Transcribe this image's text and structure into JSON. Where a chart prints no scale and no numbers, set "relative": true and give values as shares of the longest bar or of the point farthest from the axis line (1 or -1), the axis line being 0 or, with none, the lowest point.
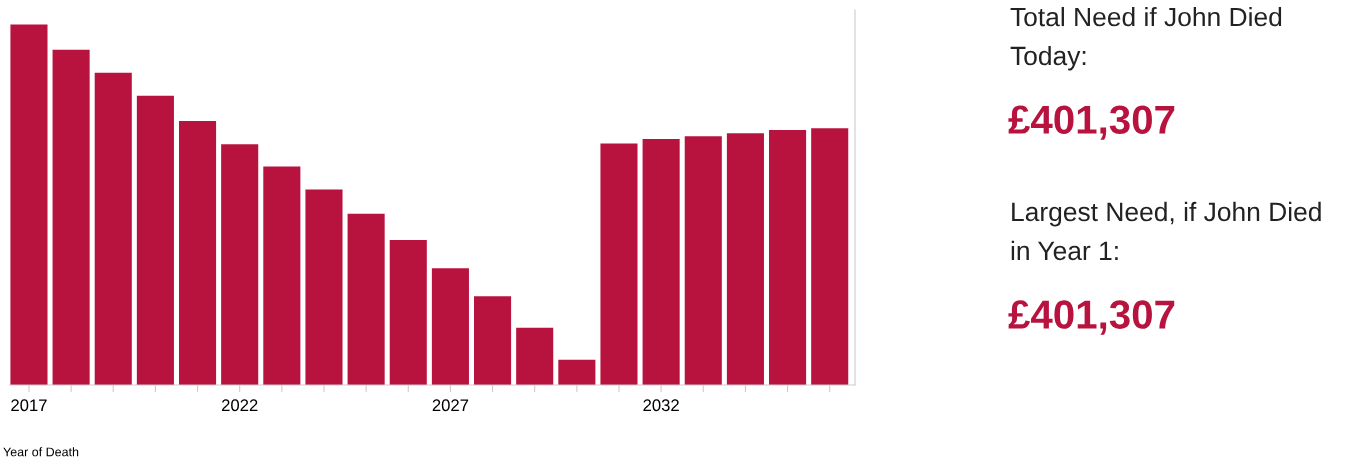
{
  "chart_data": [
    {
      "type": "bar",
      "xlabel": "Year of Death",
      "relative": true,
      "color": "#b8133f",
      "x": [
        2017,
        2018,
        2019,
        2020,
        2021,
        2022,
        2023,
        2024,
        2025,
        2026,
        2027,
        2028,
        2029,
        2030,
        2031,
        2032,
        2033,
        2034,
        2035,
        2036
      ],
      "values": [
        1,
        0.93,
        0.866,
        0.802,
        0.732,
        0.668,
        0.606,
        0.542,
        0.475,
        0.402,
        0.324,
        0.246,
        0.159,
        0.07,
        0.67,
        0.682,
        0.69,
        0.698,
        0.707,
        0.712
      ],
      "xlim": [
        2016.55,
        2036.6
      ],
      "xticks": [
        2017,
        {
          "value": 2018,
          "label": null
        },
        {
          "value": 2019,
          "label": null
        },
        {
          "value": 2020,
          "label": null
        },
        {
          "value": 2021,
          "label": null
        },
        2022,
        {
          "value": 2023,
          "label": null
        },
        {
          "value": 2024,
          "label": null
        },
        {
          "value": 2025,
          "label": null
        },
        {
          "value": 2026,
          "label": null
        },
        2027,
        {
          "value": 2028,
          "label": null
        },
        {
          "value": 2029,
          "label": null
        },
        {
          "value": 2030,
          "label": null
        },
        {
          "value": 2031,
          "label": null
        },
        2032,
        {
          "value": 2033,
          "label": null
        },
        {
          "value": 2034,
          "label": null
        },
        {
          "value": 2035,
          "label": null
        },
        {
          "value": 2036,
          "label": null
        }
      ],
      "grid": false,
      "legend": false
    },
    {
      "type": "other",
      "color": "#b8133f",
      "annotations": [
        "Total Need if John Died Today:",
        "£401,307",
        "Largest Need, if John Died in Year 1:",
        "£401,307"
      ]
    }
  ]
}
